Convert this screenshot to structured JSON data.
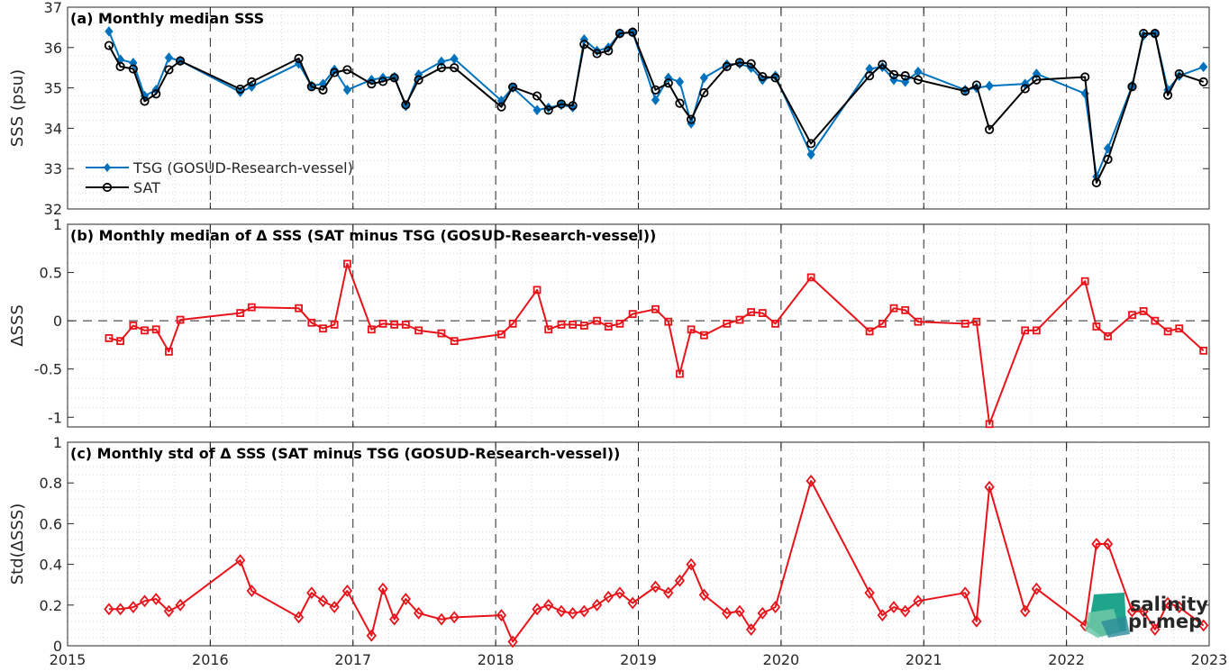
{
  "colors": {
    "tsg": "#0072BD",
    "sat": "#000000",
    "delta": "#E8131A",
    "logo_top": "#1FA58C",
    "logo_bottom": "#2C8C99"
  },
  "x_tick_labels": [
    "2015",
    "2016",
    "2017",
    "2018",
    "2019",
    "2020",
    "2021",
    "2022",
    "2023"
  ],
  "logo": {
    "text_top": "salinity",
    "text_bottom": "pi-mep",
    "icon": "wave-logo-icon"
  },
  "chart_data": [
    {
      "id": "a",
      "type": "line",
      "title": "(a) Monthly median SSS",
      "xlabel": "",
      "ylabel": "SSS (psu)",
      "xlim": [
        2015,
        2023
      ],
      "ylim": [
        32,
        37
      ],
      "y_ticks": [
        32,
        33,
        34,
        35,
        36,
        37
      ],
      "y_tick_labels": [
        "32",
        "33",
        "34",
        "35",
        "36",
        "37"
      ],
      "grid": true,
      "legend": "bottom-left",
      "series": [
        {
          "name": "TSG (GOSUD-Research-vessel)",
          "marker": "filled-diamond",
          "x": [
            2015.29,
            2015.37,
            2015.46,
            2015.54,
            2015.62,
            2015.71,
            2015.79,
            2016.21,
            2016.29,
            2016.62,
            2016.71,
            2016.79,
            2016.87,
            2016.96,
            2017.13,
            2017.21,
            2017.29,
            2017.37,
            2017.46,
            2017.62,
            2017.71,
            2018.04,
            2018.12,
            2018.29,
            2018.37,
            2018.46,
            2018.54,
            2018.62,
            2018.71,
            2018.79,
            2018.87,
            2018.96,
            2019.12,
            2019.21,
            2019.29,
            2019.37,
            2019.46,
            2019.62,
            2019.71,
            2019.79,
            2019.87,
            2019.96,
            2020.21,
            2020.62,
            2020.71,
            2020.79,
            2020.87,
            2020.96,
            2021.29,
            2021.37,
            2021.46,
            2021.71,
            2021.79,
            2022.13,
            2022.21,
            2022.29,
            2022.46,
            2022.54,
            2022.62,
            2022.71,
            2022.79,
            2022.96
          ],
          "y": [
            36.4,
            35.7,
            35.62,
            34.8,
            34.95,
            35.75,
            35.67,
            34.9,
            35.03,
            35.6,
            35.05,
            35.1,
            35.45,
            34.95,
            35.2,
            35.25,
            35.27,
            34.55,
            35.33,
            35.65,
            35.72,
            34.68,
            35.01,
            34.45,
            34.51,
            34.58,
            34.52,
            36.2,
            35.92,
            36.0,
            36.35,
            36.38,
            34.7,
            35.25,
            35.15,
            34.12,
            35.25,
            35.58,
            35.6,
            35.5,
            35.2,
            35.3,
            33.35,
            35.47,
            35.52,
            35.2,
            35.15,
            35.4,
            34.95,
            35.0,
            35.05,
            35.1,
            35.35,
            34.86,
            32.8,
            33.5,
            35.05,
            36.3,
            36.35,
            34.95,
            35.3,
            35.52
          ]
        },
        {
          "name": "SAT",
          "marker": "open-circle",
          "x": [
            2015.29,
            2015.37,
            2015.46,
            2015.54,
            2015.62,
            2015.71,
            2015.79,
            2016.21,
            2016.29,
            2016.62,
            2016.71,
            2016.79,
            2016.87,
            2016.96,
            2017.13,
            2017.21,
            2017.29,
            2017.37,
            2017.46,
            2017.62,
            2017.71,
            2018.04,
            2018.12,
            2018.29,
            2018.37,
            2018.46,
            2018.54,
            2018.62,
            2018.71,
            2018.79,
            2018.87,
            2018.96,
            2019.12,
            2019.21,
            2019.29,
            2019.37,
            2019.46,
            2019.62,
            2019.71,
            2019.79,
            2019.87,
            2019.96,
            2020.21,
            2020.62,
            2020.71,
            2020.79,
            2020.87,
            2020.96,
            2021.29,
            2021.37,
            2021.46,
            2021.71,
            2021.79,
            2022.13,
            2022.21,
            2022.29,
            2022.46,
            2022.54,
            2022.62,
            2022.71,
            2022.79,
            2022.96
          ],
          "y": [
            36.05,
            35.53,
            35.47,
            34.67,
            34.85,
            35.45,
            35.67,
            34.97,
            35.15,
            35.73,
            35.03,
            34.95,
            35.38,
            35.45,
            35.1,
            35.16,
            35.25,
            34.58,
            35.2,
            35.5,
            35.5,
            34.53,
            35.02,
            34.8,
            34.45,
            34.6,
            34.56,
            36.08,
            35.85,
            35.92,
            36.35,
            36.38,
            34.95,
            35.12,
            34.62,
            34.22,
            34.88,
            35.53,
            35.63,
            35.6,
            35.28,
            35.25,
            33.62,
            35.3,
            35.58,
            35.33,
            35.3,
            35.2,
            34.92,
            35.07,
            33.97,
            34.98,
            35.2,
            35.27,
            32.65,
            33.23,
            35.03,
            36.35,
            36.35,
            34.82,
            35.35,
            35.15
          ]
        }
      ]
    },
    {
      "id": "b",
      "type": "line",
      "title": "(b) Monthly median of Δ SSS (SAT minus TSG (GOSUD-Research-vessel))",
      "xlabel": "",
      "ylabel": "ΔSSS",
      "xlim": [
        2015,
        2023
      ],
      "ylim": [
        -1.1,
        1
      ],
      "y_ticks": [
        -1,
        -0.5,
        0,
        0.5,
        1
      ],
      "y_tick_labels": [
        "-1",
        "-0.5",
        "0",
        "0.5",
        "1"
      ],
      "zero_line": true,
      "grid": true,
      "series": [
        {
          "name": "",
          "marker": "open-square",
          "x": [
            2015.29,
            2015.37,
            2015.46,
            2015.54,
            2015.62,
            2015.71,
            2015.79,
            2016.21,
            2016.29,
            2016.62,
            2016.71,
            2016.79,
            2016.87,
            2016.96,
            2017.13,
            2017.21,
            2017.29,
            2017.37,
            2017.46,
            2017.62,
            2017.71,
            2018.04,
            2018.12,
            2018.29,
            2018.37,
            2018.46,
            2018.54,
            2018.62,
            2018.71,
            2018.79,
            2018.87,
            2018.96,
            2019.12,
            2019.21,
            2019.29,
            2019.37,
            2019.46,
            2019.62,
            2019.71,
            2019.79,
            2019.87,
            2019.96,
            2020.21,
            2020.62,
            2020.71,
            2020.79,
            2020.87,
            2020.96,
            2021.29,
            2021.37,
            2021.46,
            2021.71,
            2021.79,
            2022.13,
            2022.21,
            2022.29,
            2022.46,
            2022.54,
            2022.62,
            2022.71,
            2022.79,
            2022.96
          ],
          "y": [
            -0.18,
            -0.21,
            -0.05,
            -0.1,
            -0.09,
            -0.32,
            0.01,
            0.08,
            0.14,
            0.13,
            -0.02,
            -0.08,
            -0.04,
            0.59,
            -0.09,
            -0.03,
            -0.04,
            -0.04,
            -0.1,
            -0.13,
            -0.21,
            -0.14,
            -0.03,
            0.32,
            -0.09,
            -0.04,
            -0.04,
            -0.05,
            0.0,
            -0.06,
            -0.03,
            0.07,
            0.12,
            -0.01,
            -0.55,
            -0.09,
            -0.15,
            -0.03,
            0.01,
            0.09,
            0.08,
            -0.03,
            0.45,
            -0.11,
            -0.03,
            0.13,
            0.11,
            -0.01,
            -0.03,
            -0.01,
            -1.07,
            -0.1,
            -0.1,
            0.41,
            -0.06,
            -0.16,
            0.06,
            0.1,
            0.0,
            -0.11,
            -0.08,
            -0.31
          ]
        }
      ]
    },
    {
      "id": "c",
      "type": "line",
      "title": "(c) Monthly std of Δ SSS (SAT minus TSG (GOSUD-Research-vessel))",
      "xlabel": "",
      "ylabel": "Std(ΔSSS)",
      "xlim": [
        2015,
        2023
      ],
      "ylim": [
        0,
        1
      ],
      "y_ticks": [
        0,
        0.2,
        0.4,
        0.6,
        0.8,
        1
      ],
      "y_tick_labels": [
        "0",
        "0.2",
        "0.4",
        "0.6",
        "0.8",
        "1"
      ],
      "grid": true,
      "series": [
        {
          "name": "",
          "marker": "open-diamond",
          "x": [
            2015.29,
            2015.37,
            2015.46,
            2015.54,
            2015.62,
            2015.71,
            2015.79,
            2016.21,
            2016.29,
            2016.62,
            2016.71,
            2016.79,
            2016.87,
            2016.96,
            2017.13,
            2017.21,
            2017.29,
            2017.37,
            2017.46,
            2017.62,
            2017.71,
            2018.04,
            2018.12,
            2018.29,
            2018.37,
            2018.46,
            2018.54,
            2018.62,
            2018.71,
            2018.79,
            2018.87,
            2018.96,
            2019.12,
            2019.21,
            2019.29,
            2019.37,
            2019.46,
            2019.62,
            2019.71,
            2019.79,
            2019.87,
            2019.96,
            2020.21,
            2020.62,
            2020.71,
            2020.79,
            2020.87,
            2020.96,
            2021.29,
            2021.37,
            2021.46,
            2021.71,
            2021.79,
            2022.13,
            2022.21,
            2022.29,
            2022.46,
            2022.54,
            2022.62,
            2022.71,
            2022.79,
            2022.96
          ],
          "y": [
            0.18,
            0.18,
            0.19,
            0.22,
            0.23,
            0.17,
            0.2,
            0.42,
            0.27,
            0.14,
            0.26,
            0.22,
            0.19,
            0.27,
            0.05,
            0.28,
            0.13,
            0.23,
            0.16,
            0.13,
            0.14,
            0.15,
            0.02,
            0.18,
            0.2,
            0.17,
            0.16,
            0.17,
            0.2,
            0.24,
            0.26,
            0.21,
            0.29,
            0.26,
            0.32,
            0.4,
            0.25,
            0.16,
            0.17,
            0.08,
            0.16,
            0.19,
            0.81,
            0.26,
            0.15,
            0.19,
            0.17,
            0.22,
            0.26,
            0.12,
            0.78,
            0.17,
            0.28,
            0.1,
            0.5,
            0.5,
            0.17,
            0.17,
            0.08,
            0.21,
            0.19,
            0.1
          ]
        }
      ]
    }
  ]
}
